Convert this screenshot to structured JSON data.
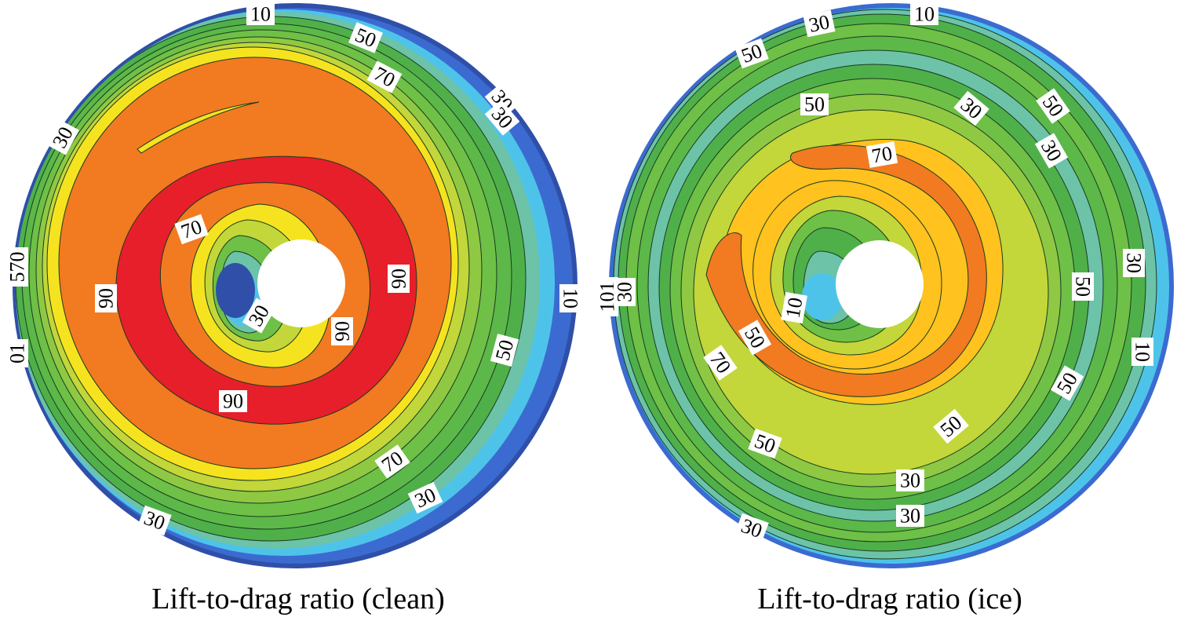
{
  "chart_data": [
    {
      "type": "contour",
      "title": "Lift-to-drag ratio (clean)",
      "variable": "Lift-to-drag ratio",
      "contour_labels": [
        "10",
        "50",
        "70",
        "30",
        "30",
        "570",
        "01",
        "30",
        "90",
        "06",
        "70",
        "30",
        "06",
        "90",
        "10",
        "50",
        "70",
        "30",
        "30"
      ],
      "levels_legend": [
        10,
        30,
        50,
        70,
        90
      ]
    },
    {
      "type": "contour",
      "title": "Lift-to-drag ratio (ice)",
      "variable": "Lift-to-drag ratio",
      "contour_labels": [
        "10",
        "30",
        "50",
        "50",
        "30",
        "50",
        "70",
        "30",
        "101",
        "30",
        "10",
        "50",
        "70",
        "50",
        "30",
        "10",
        "50",
        "50",
        "50",
        "30",
        "30",
        "30"
      ],
      "levels_legend": [
        10,
        30,
        50,
        70
      ]
    }
  ],
  "colors": {
    "deep_blue": "#2f4fa8",
    "blue": "#3b6bd0",
    "light_blue": "#4ec3ea",
    "teal": "#6cc3a8",
    "green": "#4fb04a",
    "light_green": "#8fc843",
    "yellow_green": "#c3d63a",
    "yellow": "#f6e31f",
    "gold": "#ffc21e",
    "orange": "#f27a20",
    "red": "#e61f2a",
    "white": "#ffffff"
  }
}
